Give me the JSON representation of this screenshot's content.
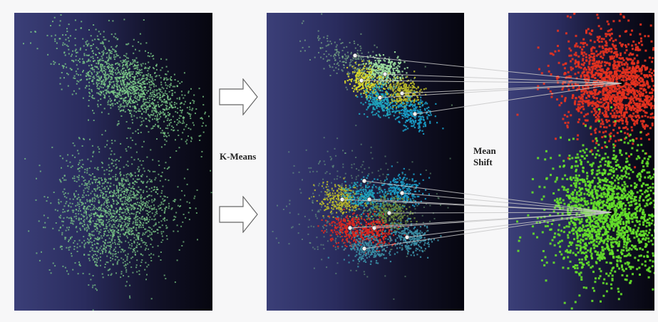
{
  "labels": {
    "kmeans": "K-Means",
    "meanshift_line1": "Mean",
    "meanshift_line2": "Shift"
  },
  "colors": {
    "raw_points": "#7fd089",
    "kmeans_clusters": [
      "#d9d92a",
      "#9ee0a0",
      "#1fa4bf",
      "#b9b92a",
      "#1a9dc7",
      "#6b8a3a",
      "#e0281e",
      "#3a8fa6"
    ],
    "meanshift_top": "#e8321f",
    "meanshift_bottom": "#66e22a",
    "centroid": "#ffffff",
    "mode": "#000000",
    "link_line": "#c8c8c8"
  }
}
